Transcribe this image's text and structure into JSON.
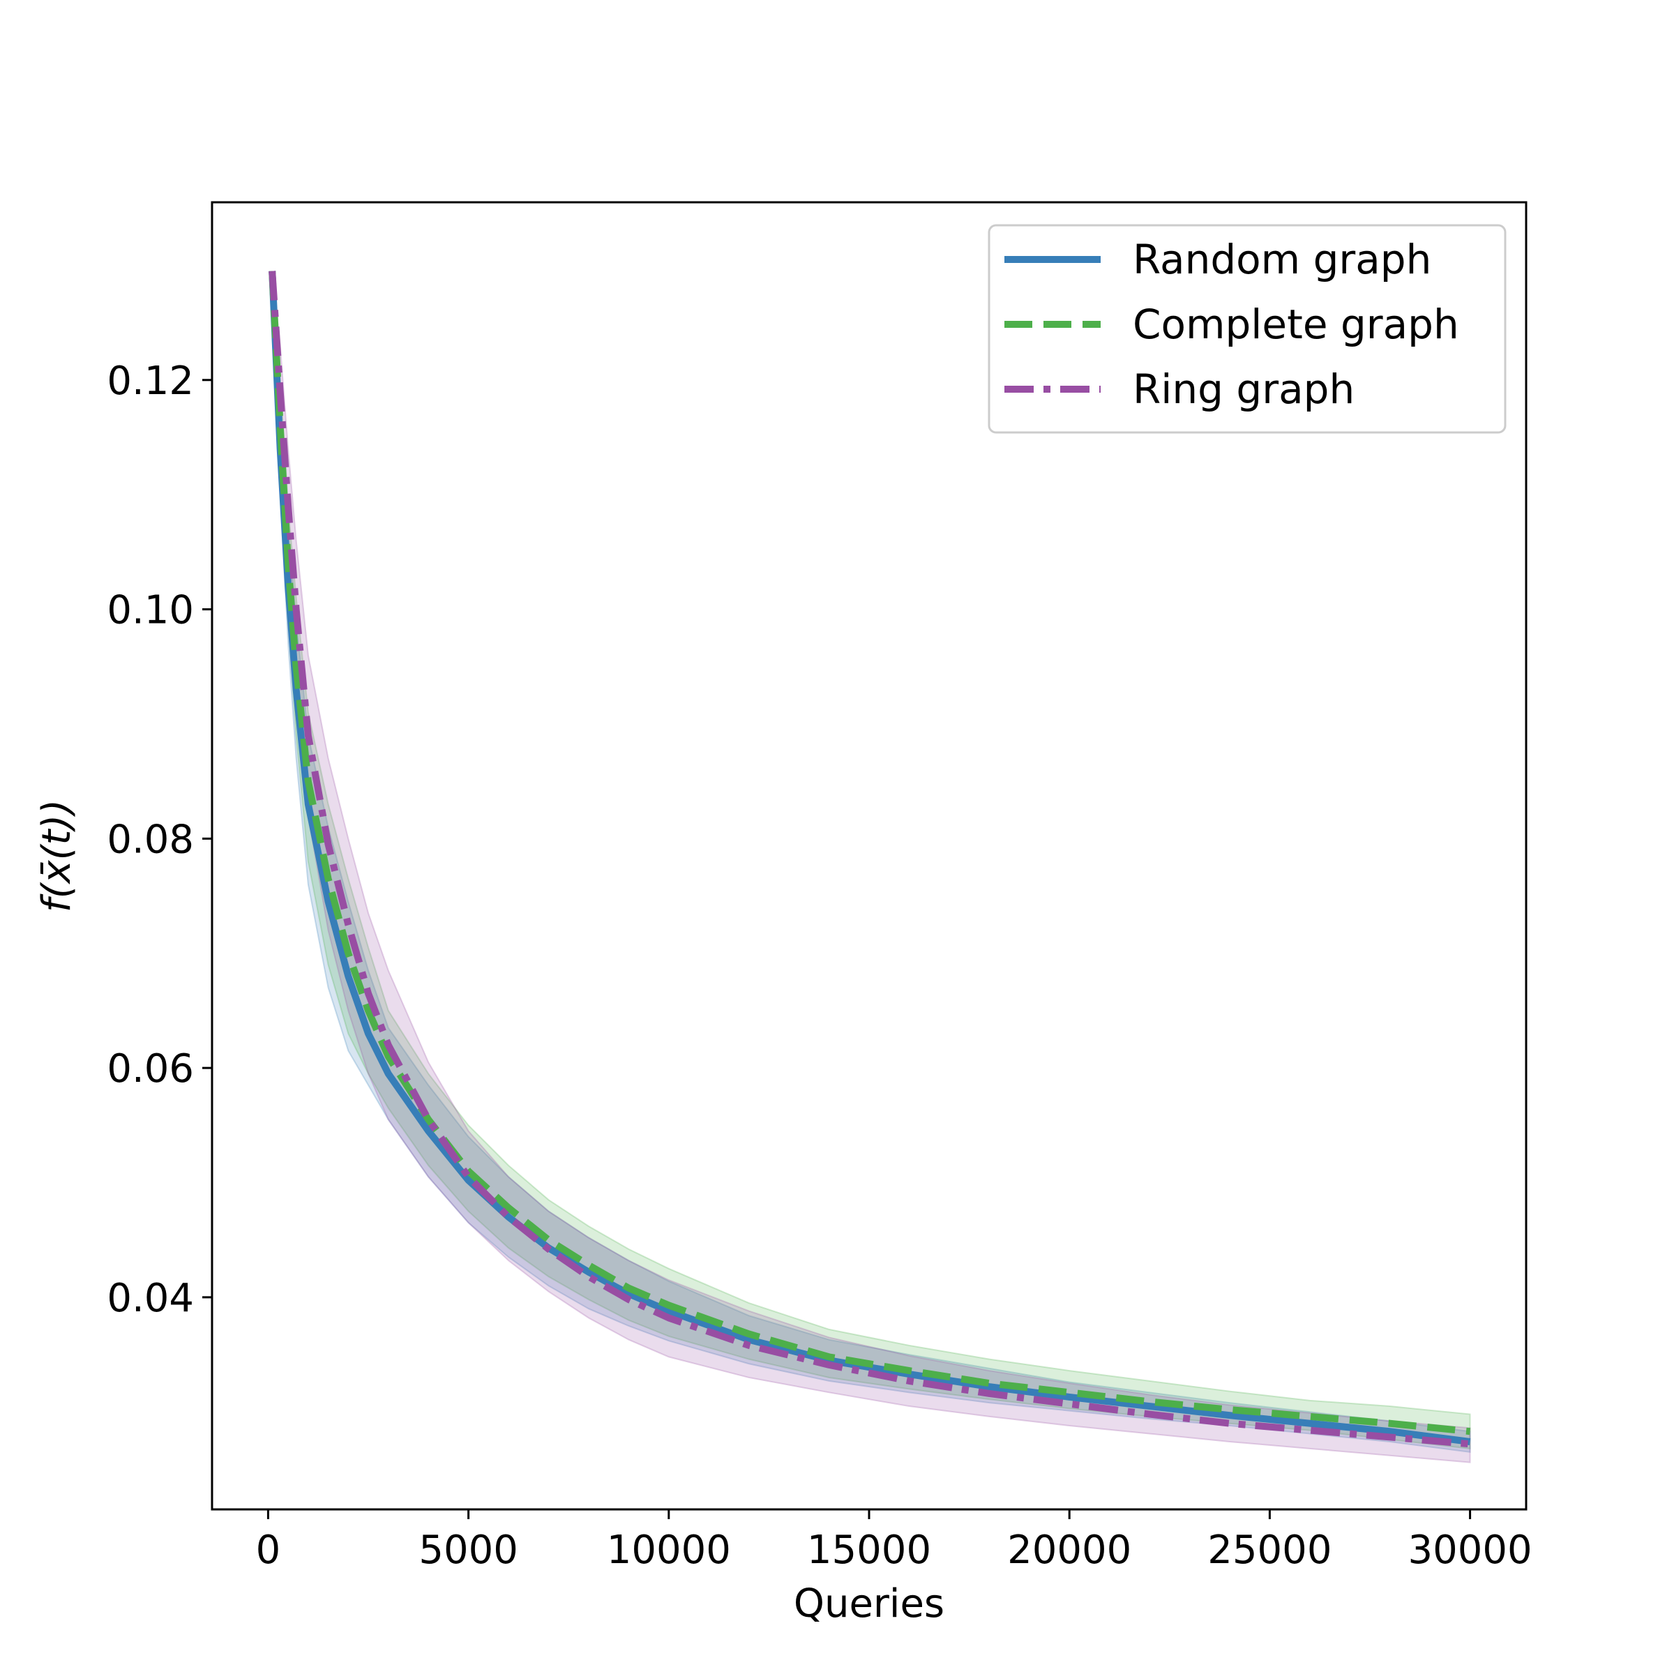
{
  "chart_data": {
    "type": "line",
    "xlabel": "Queries",
    "ylabel": "f(x̄(t))",
    "xlim": [
      -1400,
      31400
    ],
    "ylim": [
      0.0215,
      0.1355
    ],
    "xticks": [
      0,
      5000,
      10000,
      15000,
      20000,
      25000,
      30000
    ],
    "xtick_labels": [
      "0",
      "5000",
      "10000",
      "15000",
      "20000",
      "25000",
      "30000"
    ],
    "yticks": [
      0.04,
      0.06,
      0.08,
      0.1,
      0.12
    ],
    "ytick_labels": [
      "0.04",
      "0.06",
      "0.08",
      "0.10",
      "0.12"
    ],
    "grid": false,
    "legend_position": "top-right",
    "x": [
      100,
      300,
      500,
      700,
      1000,
      1500,
      2000,
      2500,
      3000,
      4000,
      5000,
      6000,
      7000,
      8000,
      9000,
      10000,
      12000,
      14000,
      16000,
      18000,
      20000,
      22000,
      24000,
      26000,
      28000,
      30000
    ],
    "series": [
      {
        "name": "Random graph",
        "color": "#377eb8",
        "linestyle": "solid",
        "values": [
          0.1295,
          0.114,
          0.102,
          0.093,
          0.083,
          0.0745,
          0.068,
          0.063,
          0.0595,
          0.0545,
          0.0502,
          0.047,
          0.0443,
          0.0422,
          0.0403,
          0.0388,
          0.0363,
          0.0345,
          0.0333,
          0.0322,
          0.0313,
          0.0305,
          0.0297,
          0.029,
          0.0283,
          0.0274
        ],
        "lower": [
          0.1295,
          0.11,
          0.097,
          0.087,
          0.076,
          0.067,
          0.0615,
          0.0585,
          0.0555,
          0.0505,
          0.0465,
          0.0435,
          0.041,
          0.039,
          0.0375,
          0.0362,
          0.0342,
          0.0327,
          0.0317,
          0.0308,
          0.0301,
          0.0294,
          0.0288,
          0.0281,
          0.0274,
          0.0265
        ],
        "upper": [
          0.1295,
          0.118,
          0.107,
          0.099,
          0.089,
          0.081,
          0.0745,
          0.0685,
          0.0635,
          0.0585,
          0.054,
          0.0505,
          0.0475,
          0.0452,
          0.0432,
          0.0414,
          0.0384,
          0.0363,
          0.035,
          0.0338,
          0.0326,
          0.0317,
          0.0308,
          0.03,
          0.0292,
          0.0283
        ]
      },
      {
        "name": "Complete graph",
        "color": "#4daf4a",
        "linestyle": "dashed",
        "values": [
          0.1295,
          0.116,
          0.104,
          0.095,
          0.085,
          0.0765,
          0.07,
          0.065,
          0.061,
          0.0555,
          0.051,
          0.0478,
          0.045,
          0.0428,
          0.0408,
          0.0393,
          0.0368,
          0.0348,
          0.0336,
          0.0325,
          0.0317,
          0.0309,
          0.0302,
          0.0296,
          0.029,
          0.0283
        ],
        "lower": [
          0.1295,
          0.112,
          0.099,
          0.089,
          0.078,
          0.069,
          0.063,
          0.0595,
          0.0565,
          0.0515,
          0.0475,
          0.0443,
          0.0418,
          0.0398,
          0.038,
          0.0366,
          0.0346,
          0.033,
          0.032,
          0.0311,
          0.0303,
          0.0296,
          0.029,
          0.0284,
          0.0276,
          0.0268
        ],
        "upper": [
          0.1295,
          0.12,
          0.109,
          0.101,
          0.091,
          0.083,
          0.0765,
          0.0705,
          0.065,
          0.0595,
          0.055,
          0.0515,
          0.0485,
          0.0462,
          0.0442,
          0.0425,
          0.0395,
          0.0372,
          0.0358,
          0.0346,
          0.0336,
          0.0327,
          0.0318,
          0.031,
          0.0305,
          0.0298
        ]
      },
      {
        "name": "Ring graph",
        "color": "#984ea3",
        "linestyle": "dashdot",
        "values": [
          0.1295,
          0.119,
          0.109,
          0.1,
          0.089,
          0.0795,
          0.0725,
          0.0665,
          0.062,
          0.0555,
          0.0505,
          0.047,
          0.0442,
          0.0418,
          0.0398,
          0.0382,
          0.0358,
          0.0341,
          0.0327,
          0.0316,
          0.0307,
          0.0298,
          0.029,
          0.0284,
          0.0278,
          0.0272
        ],
        "lower": [
          0.1295,
          0.115,
          0.104,
          0.094,
          0.082,
          0.072,
          0.065,
          0.0595,
          0.0555,
          0.0505,
          0.0465,
          0.0432,
          0.0405,
          0.0382,
          0.0363,
          0.0348,
          0.033,
          0.0317,
          0.0305,
          0.0296,
          0.0288,
          0.0281,
          0.0274,
          0.0268,
          0.0262,
          0.0256
        ],
        "upper": [
          0.1295,
          0.123,
          0.114,
          0.106,
          0.096,
          0.087,
          0.08,
          0.0735,
          0.0685,
          0.0605,
          0.0545,
          0.0505,
          0.0475,
          0.0452,
          0.0432,
          0.0415,
          0.0388,
          0.0365,
          0.0349,
          0.0336,
          0.0325,
          0.0315,
          0.0306,
          0.0299,
          0.0292,
          0.0286
        ]
      }
    ]
  }
}
